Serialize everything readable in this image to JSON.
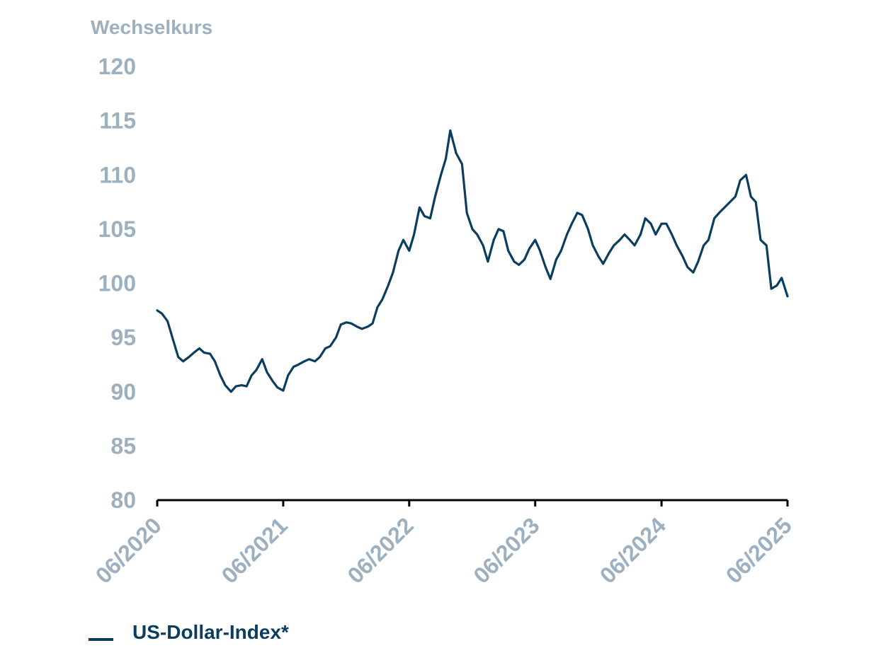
{
  "chart_data": {
    "type": "line",
    "ylabel": "Wechselkurs",
    "ylim": [
      80,
      120
    ],
    "yticks": [
      "120",
      "115",
      "110",
      "105",
      "100",
      "95",
      "90",
      "85",
      "80"
    ],
    "xlim": [
      "2020-06",
      "2025-06"
    ],
    "xticks": [
      "06/2020",
      "06/2021",
      "06/2022",
      "06/2023",
      "06/2024",
      "06/2025"
    ],
    "series": [
      {
        "name": "US-Dollar-Index*",
        "color": "#0b3d5f",
        "x": [
          "2020-06-01",
          "2020-06-15",
          "2020-07-01",
          "2020-07-15",
          "2020-08-01",
          "2020-08-15",
          "2020-09-01",
          "2020-09-15",
          "2020-10-01",
          "2020-10-15",
          "2020-11-01",
          "2020-11-15",
          "2020-12-01",
          "2020-12-15",
          "2021-01-01",
          "2021-01-15",
          "2021-02-01",
          "2021-02-15",
          "2021-03-01",
          "2021-03-15",
          "2021-04-01",
          "2021-04-15",
          "2021-05-01",
          "2021-05-15",
          "2021-06-01",
          "2021-06-15",
          "2021-07-01",
          "2021-07-15",
          "2021-08-01",
          "2021-08-15",
          "2021-09-01",
          "2021-09-15",
          "2021-10-01",
          "2021-10-15",
          "2021-11-01",
          "2021-11-15",
          "2021-12-01",
          "2021-12-15",
          "2022-01-01",
          "2022-01-15",
          "2022-02-01",
          "2022-02-15",
          "2022-03-01",
          "2022-03-15",
          "2022-04-01",
          "2022-04-15",
          "2022-05-01",
          "2022-05-15",
          "2022-06-01",
          "2022-06-15",
          "2022-07-01",
          "2022-07-15",
          "2022-08-01",
          "2022-08-15",
          "2022-09-01",
          "2022-09-15",
          "2022-09-28",
          "2022-10-15",
          "2022-11-01",
          "2022-11-15",
          "2022-12-01",
          "2022-12-15",
          "2023-01-01",
          "2023-01-15",
          "2023-02-01",
          "2023-02-15",
          "2023-03-01",
          "2023-03-15",
          "2023-04-01",
          "2023-04-15",
          "2023-05-01",
          "2023-05-15",
          "2023-06-01",
          "2023-06-15",
          "2023-07-01",
          "2023-07-15",
          "2023-08-01",
          "2023-08-15",
          "2023-09-01",
          "2023-09-15",
          "2023-10-01",
          "2023-10-15",
          "2023-11-01",
          "2023-11-15",
          "2023-12-01",
          "2023-12-15",
          "2024-01-01",
          "2024-01-15",
          "2024-02-01",
          "2024-02-15",
          "2024-03-01",
          "2024-03-15",
          "2024-04-01",
          "2024-04-15",
          "2024-05-01",
          "2024-05-15",
          "2024-06-01",
          "2024-06-15",
          "2024-07-01",
          "2024-07-15",
          "2024-08-01",
          "2024-08-15",
          "2024-09-01",
          "2024-09-15",
          "2024-10-01",
          "2024-10-15",
          "2024-11-01",
          "2024-11-15",
          "2025-01-01",
          "2025-01-15",
          "2025-02-01",
          "2025-02-15",
          "2025-03-01",
          "2025-03-15",
          "2025-04-01",
          "2025-04-15",
          "2025-05-01",
          "2025-05-15",
          "2025-06-01"
        ],
        "values": [
          97.5,
          97.2,
          96.5,
          95.0,
          93.2,
          92.8,
          93.2,
          93.6,
          94.0,
          93.6,
          93.5,
          92.8,
          91.5,
          90.6,
          90.0,
          90.5,
          90.6,
          90.5,
          91.5,
          92.0,
          93.0,
          91.8,
          91.0,
          90.4,
          90.1,
          91.5,
          92.3,
          92.5,
          92.8,
          93.0,
          92.8,
          93.2,
          94.0,
          94.2,
          95.0,
          96.2,
          96.4,
          96.3,
          96.0,
          95.8,
          96.0,
          96.3,
          97.8,
          98.5,
          99.8,
          101.0,
          103.0,
          104.0,
          103.0,
          104.5,
          107.0,
          106.2,
          106.0,
          108.0,
          110.0,
          111.5,
          114.1,
          112.0,
          111.0,
          106.5,
          105.0,
          104.5,
          103.5,
          102.0,
          104.0,
          105.0,
          104.8,
          103.0,
          102.0,
          101.7,
          102.2,
          103.2,
          104.0,
          103.0,
          101.5,
          100.4,
          102.2,
          103.0,
          104.5,
          105.5,
          106.5,
          106.3,
          105.0,
          103.5,
          102.5,
          101.8,
          102.8,
          103.5,
          104.0,
          104.5,
          104.0,
          103.5,
          104.5,
          106.0,
          105.5,
          104.5,
          105.5,
          105.5,
          104.5,
          103.5,
          102.5,
          101.5,
          101.0,
          102.0,
          103.5,
          104.0,
          106.0,
          106.5,
          108.0,
          109.5,
          110.0,
          108.0,
          107.5,
          104.0,
          103.5,
          99.5,
          99.8,
          100.5,
          98.8
        ]
      }
    ]
  }
}
